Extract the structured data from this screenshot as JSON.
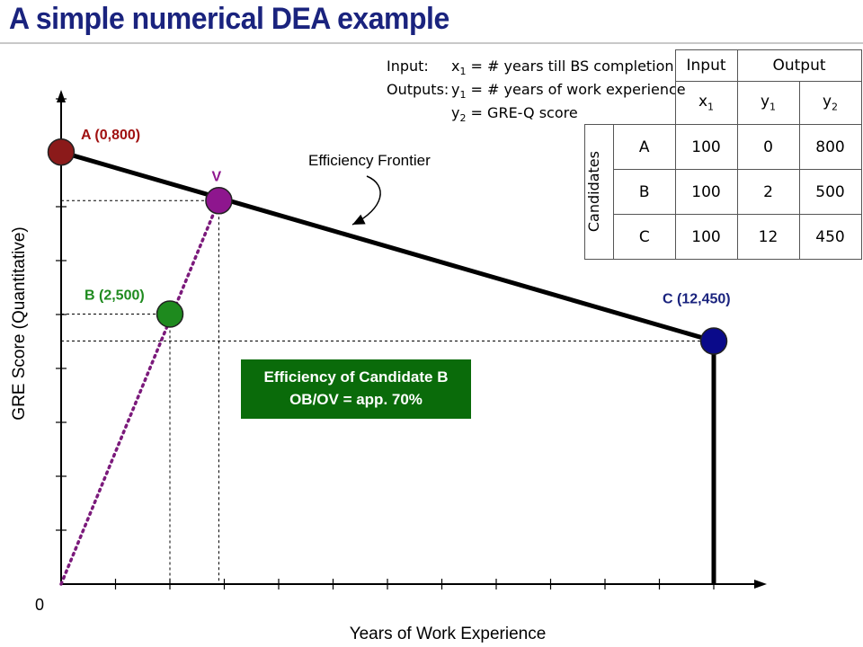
{
  "page": {
    "title": "A simple numerical DEA example"
  },
  "legend": {
    "input_head": "Input:",
    "input_var": "x",
    "input_sub": "1",
    "input_desc": " = # years till BS completion",
    "outputs_head": "Outputs:",
    "y1_var": "y",
    "y1_sub": "1",
    "y1_desc": " = # years of work experience",
    "y2_var": "y",
    "y2_sub": "2",
    "y2_desc": " = GRE-Q score"
  },
  "table": {
    "header_input": "Input",
    "header_output": "Output",
    "cols": [
      {
        "var": "x",
        "sub": "1"
      },
      {
        "var": "y",
        "sub": "1"
      },
      {
        "var": "y",
        "sub": "2"
      }
    ],
    "row_group_label": "Candidates",
    "rows": [
      {
        "name": "A",
        "x1": "100",
        "y1": "0",
        "y2": "800"
      },
      {
        "name": "B",
        "x1": "100",
        "y1": "2",
        "y2": "500"
      },
      {
        "name": "C",
        "x1": "100",
        "y1": "12",
        "y2": "450"
      }
    ]
  },
  "efficiency_box": {
    "line1": "Efficiency of Candidate B",
    "line2": "OB/OV = app. 70%"
  },
  "chart_data": {
    "type": "scatter",
    "xlabel": "Years of Work Experience",
    "ylabel": "GRE Score (Quantitative)",
    "origin_label": "0",
    "points": [
      {
        "name": "A",
        "label": "A (0,800)",
        "x": 0,
        "y": 800,
        "color": "#8b1a1a",
        "label_color": "#a01010"
      },
      {
        "name": "B",
        "label": "B (2,500)",
        "x": 2,
        "y": 500,
        "color": "#1e8a1e",
        "label_color": "#1e8a1e"
      },
      {
        "name": "C",
        "label": "C (12,450)",
        "x": 12,
        "y": 450,
        "color": "#0a0a8a",
        "label_color": "#1a237e"
      },
      {
        "name": "V",
        "label": "V",
        "x": 2.9,
        "y": 710,
        "color": "#8e168e",
        "label_color": "#8e168e"
      }
    ],
    "frontier": {
      "label": "Efficiency Frontier",
      "points": [
        "A",
        "C"
      ]
    },
    "ray": {
      "from": "origin",
      "to": "V",
      "color": "#7b1a7b"
    }
  }
}
